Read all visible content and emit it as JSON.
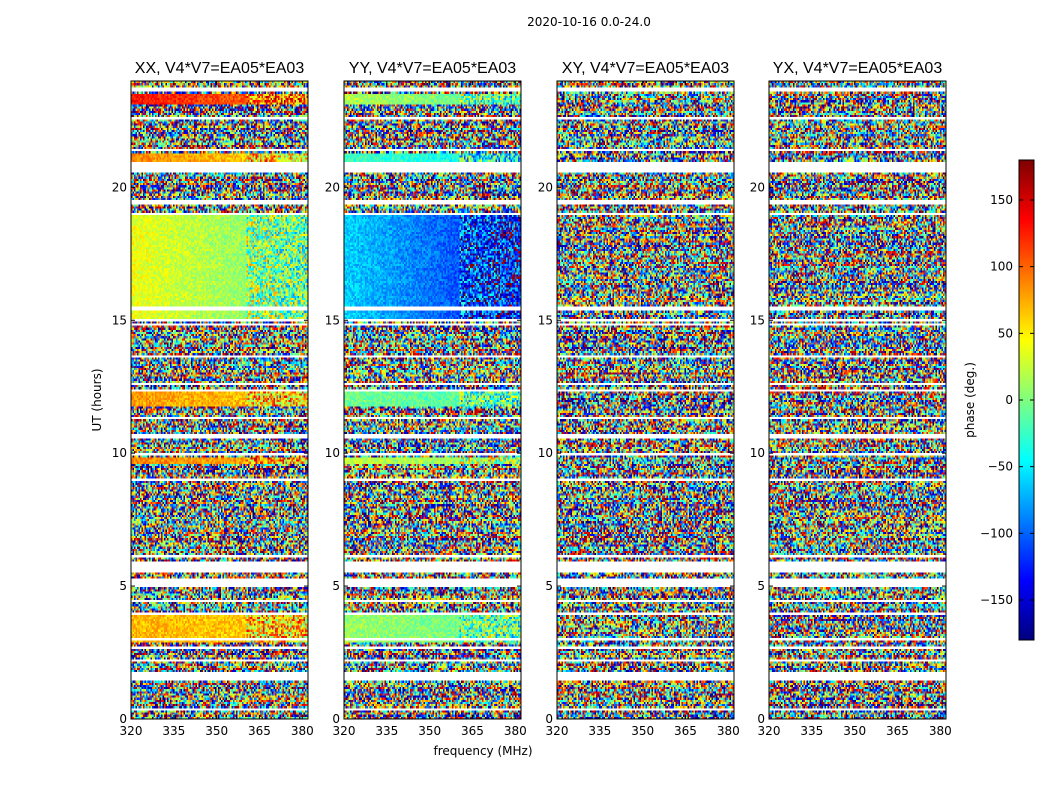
{
  "chart_data": {
    "type": "heatmap",
    "suptitle": "2020-10-16 0.0-24.0",
    "xlabel": "frequency (MHz)",
    "ylabel": "UT (hours)",
    "xlim": [
      320,
      382
    ],
    "ylim": [
      0,
      24
    ],
    "xticks": [
      320,
      335,
      350,
      365,
      380
    ],
    "yticks": [
      0,
      5,
      10,
      15,
      20
    ],
    "colorbar": {
      "label": "phase (deg.)",
      "range": [
        -180,
        180
      ],
      "ticks": [
        150,
        100,
        50,
        0,
        -50,
        -100,
        -150
      ],
      "tick_labels": [
        "150",
        "100",
        "50",
        "0",
        "−50",
        "−100",
        "−150"
      ],
      "colormap": "jet",
      "colors": [
        "#00007f",
        "#0000ff",
        "#007fff",
        "#00ffff",
        "#7fff7f",
        "#ffff00",
        "#ff7f00",
        "#ff0000",
        "#7f0000"
      ]
    },
    "panels": [
      {
        "title": "XX, V4*V7=EA05*EA03",
        "polarization": "XX",
        "coherent_spans": [
          {
            "t0": 15.0,
            "t1": 19.0,
            "phase_low_freq": 40,
            "phase_high_freq": -10
          },
          {
            "t0": 11.8,
            "t1": 12.3,
            "phase_low_freq": 80,
            "phase_high_freq": 60
          },
          {
            "t0": 9.6,
            "t1": 9.8,
            "phase_low_freq": 90,
            "phase_high_freq": 70
          },
          {
            "t0": 2.9,
            "t1": 3.9,
            "phase_low_freq": 70,
            "phase_high_freq": 60
          },
          {
            "t0": 20.9,
            "t1": 21.3,
            "phase_low_freq": 90,
            "phase_high_freq": 50
          },
          {
            "t0": 23.1,
            "t1": 23.5,
            "phase_low_freq": 130,
            "phase_high_freq": 90
          }
        ]
      },
      {
        "title": "YY, V4*V7=EA05*EA03",
        "polarization": "YY",
        "coherent_spans": [
          {
            "t0": 15.0,
            "t1": 19.0,
            "phase_low_freq": -60,
            "phase_high_freq": -130
          },
          {
            "t0": 11.8,
            "t1": 12.3,
            "phase_low_freq": -5,
            "phase_high_freq": -20
          },
          {
            "t0": 9.6,
            "t1": 9.8,
            "phase_low_freq": 20,
            "phase_high_freq": 10
          },
          {
            "t0": 2.9,
            "t1": 3.9,
            "phase_low_freq": 10,
            "phase_high_freq": -10
          },
          {
            "t0": 20.9,
            "t1": 21.3,
            "phase_low_freq": -20,
            "phase_high_freq": -50
          },
          {
            "t0": 23.1,
            "t1": 23.5,
            "phase_low_freq": 20,
            "phase_high_freq": -20
          }
        ]
      },
      {
        "title": "XY, V4*V7=EA05*EA03",
        "polarization": "XY",
        "coherent_spans": []
      },
      {
        "title": "YX, V4*V7=EA05*EA03",
        "polarization": "YX",
        "coherent_spans": []
      }
    ],
    "flagged_time_bands_hours": [
      [
        20.55,
        20.95
      ],
      [
        23.6,
        23.75
      ],
      [
        22.55,
        22.65
      ],
      [
        21.4,
        21.45
      ],
      [
        19.4,
        19.5
      ],
      [
        19.1,
        19.15
      ],
      [
        18.95,
        19.0
      ],
      [
        15.4,
        15.5
      ],
      [
        15.0,
        15.05
      ],
      [
        14.8,
        14.85
      ],
      [
        13.6,
        13.65
      ],
      [
        12.6,
        12.65
      ],
      [
        12.35,
        12.4
      ],
      [
        11.3,
        11.35
      ],
      [
        10.6,
        10.7
      ],
      [
        9.95,
        10.0
      ],
      [
        9.0,
        9.05
      ],
      [
        8.6,
        8.65
      ],
      [
        7.5,
        7.55
      ],
      [
        6.1,
        6.15
      ],
      [
        5.55,
        5.9
      ],
      [
        5.0,
        5.3
      ],
      [
        4.4,
        4.45
      ],
      [
        3.95,
        4.0
      ],
      [
        2.95,
        3.05
      ],
      [
        2.6,
        2.7
      ],
      [
        2.15,
        2.2
      ],
      [
        1.45,
        1.75
      ],
      [
        0.35,
        0.4
      ]
    ]
  }
}
